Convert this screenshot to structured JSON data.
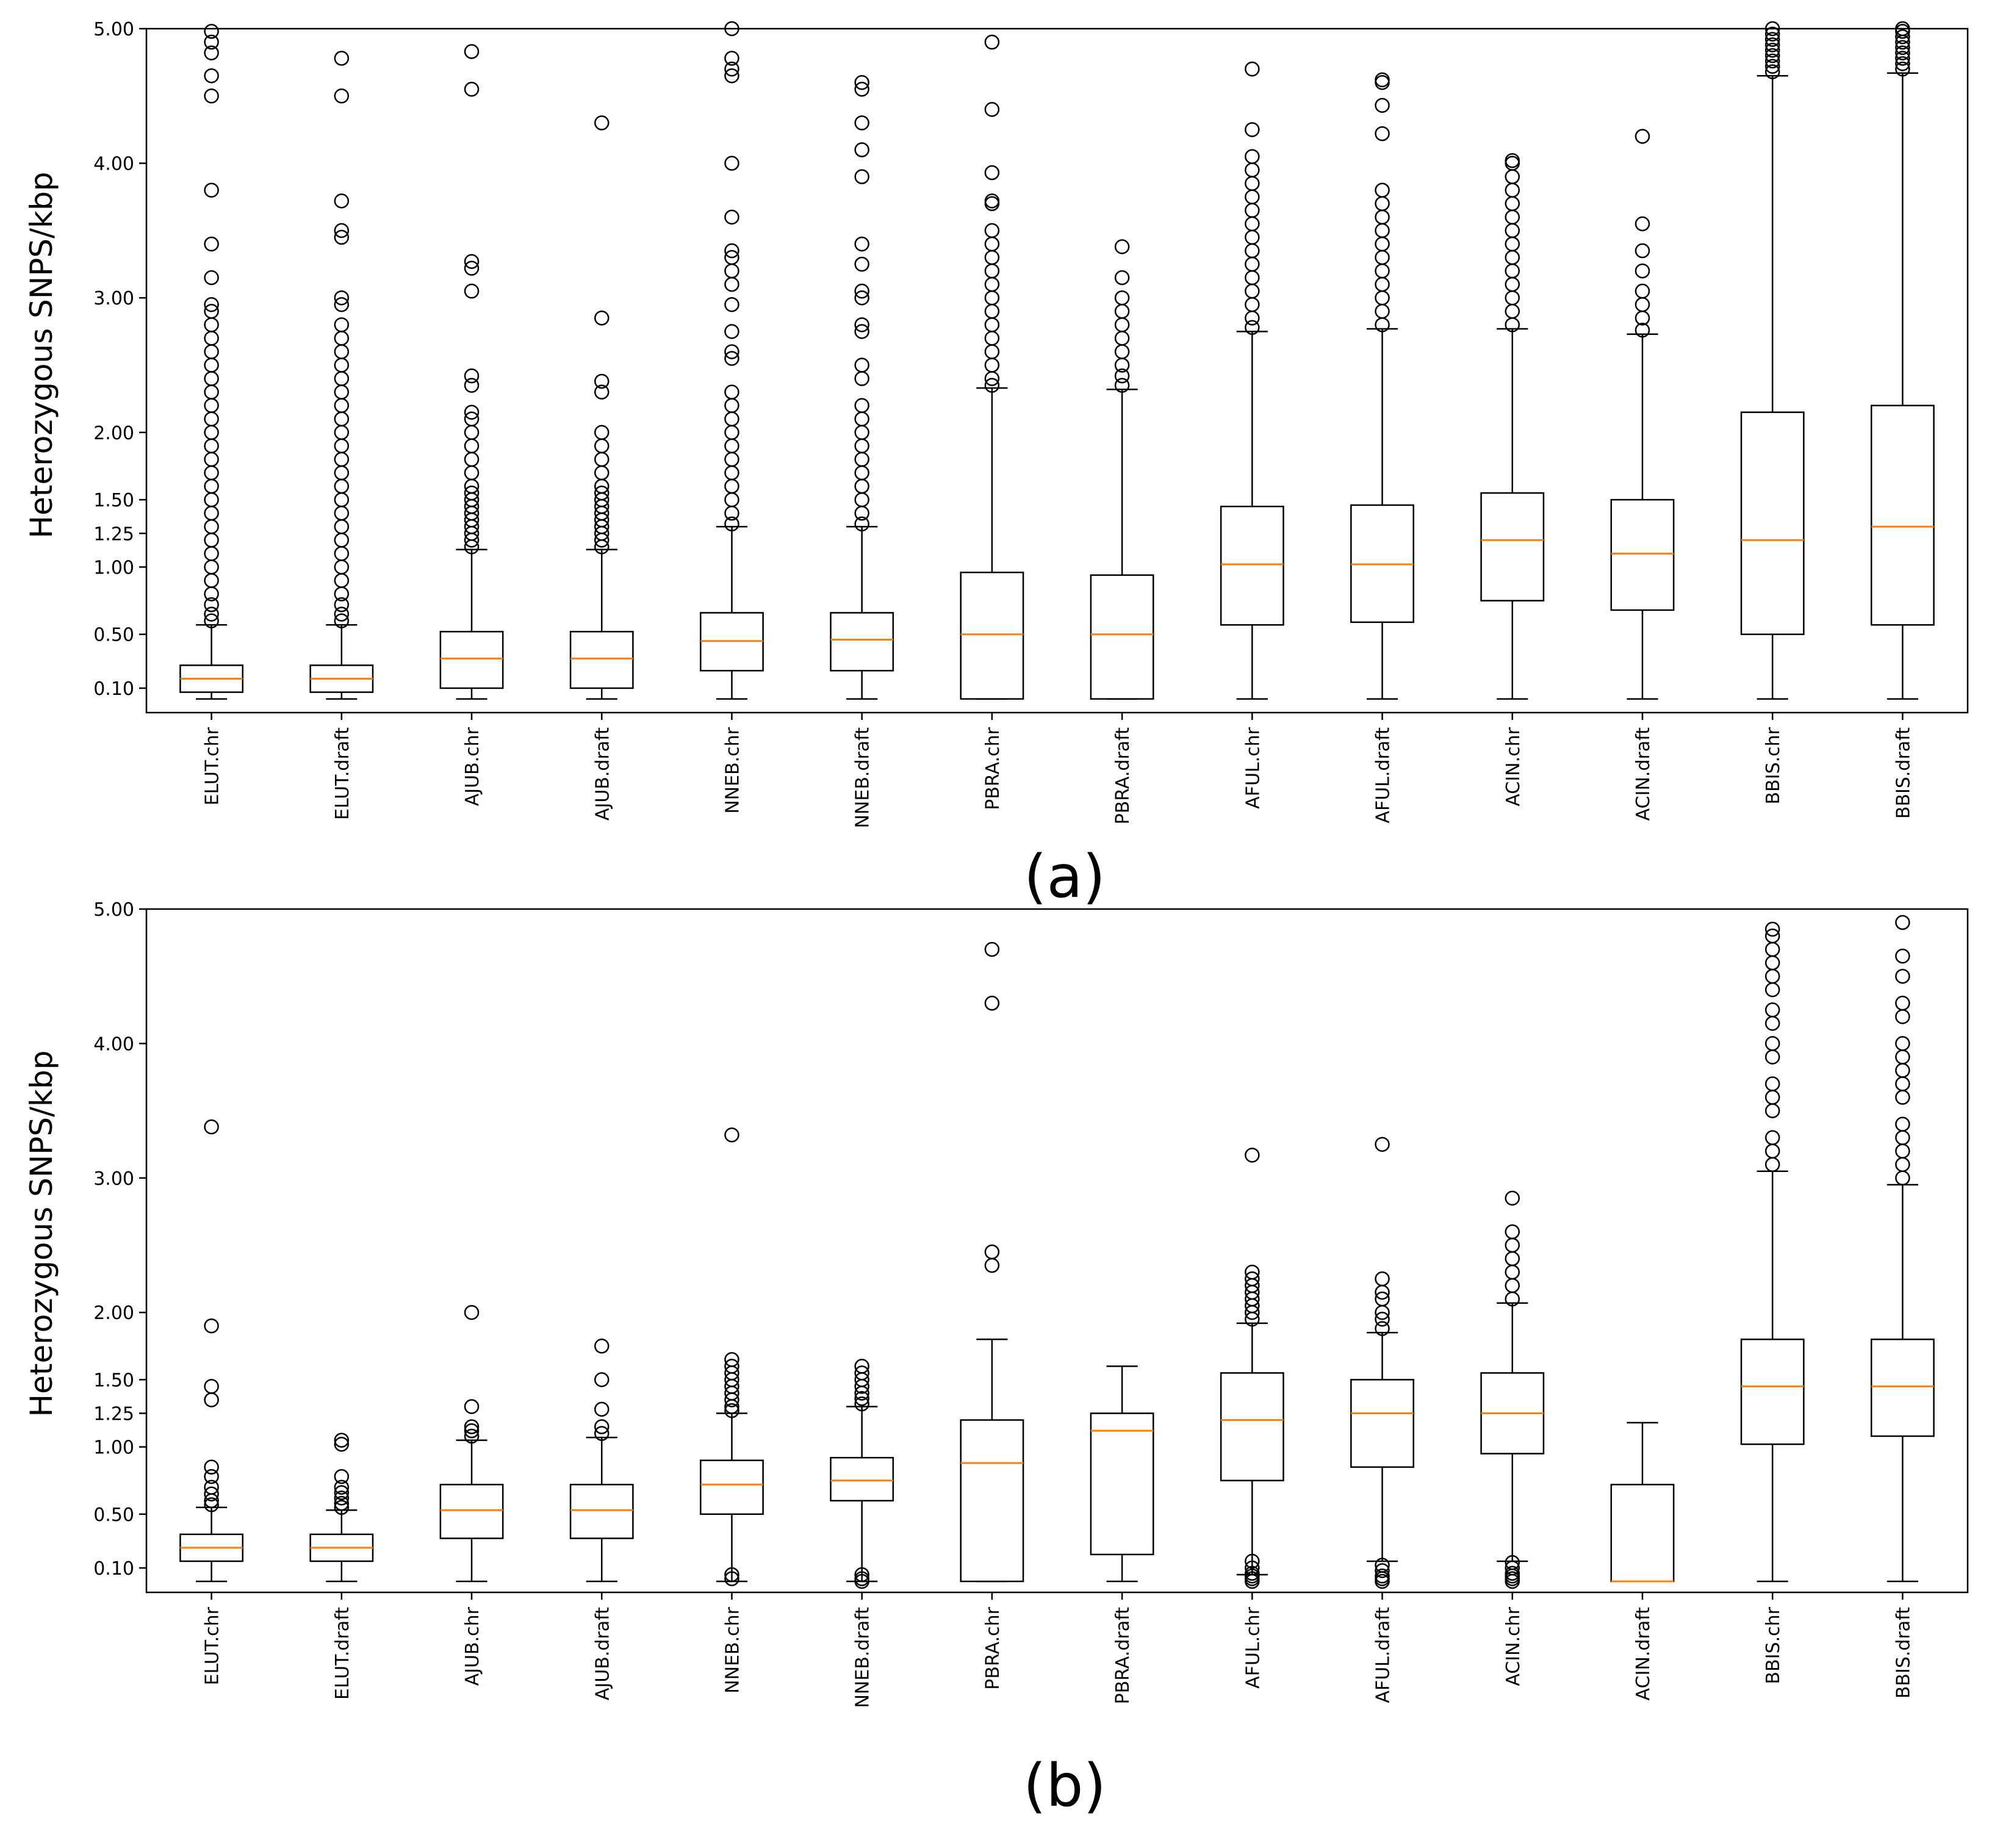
{
  "chart_data": [
    {
      "type": "boxplot",
      "panel_label": "(a)",
      "ylabel": "Heterozygous SNPS/kbp",
      "ylim": [
        0.0,
        5.0
      ],
      "yticks": [
        "0.10",
        "0.50",
        "1.00",
        "1.25",
        "1.50",
        "2.00",
        "3.00",
        "4.00",
        "5.00"
      ],
      "ytick_values": [
        0.1,
        0.5,
        1.0,
        1.25,
        1.5,
        2.0,
        3.0,
        4.0,
        5.0
      ],
      "categories": [
        "ELUT.chr",
        "ELUT.draft",
        "AJUB.chr",
        "AJUB.draft",
        "NNEB.chr",
        "NNEB.draft",
        "PBRA.chr",
        "PBRA.draft",
        "AFUL.chr",
        "AFUL.draft",
        "ACIN.chr",
        "ACIN.draft",
        "BBIS.chr",
        "BBIS.draft"
      ],
      "colors": {
        "box": "#000000",
        "median": "#ff7f0e"
      },
      "boxes": [
        {
          "whislo": 0.02,
          "q1": 0.07,
          "med": 0.17,
          "q3": 0.27,
          "whishi": 0.57,
          "fliers": [
            0.6,
            0.65,
            0.72,
            0.8,
            0.9,
            1.0,
            1.1,
            1.2,
            1.3,
            1.4,
            1.5,
            1.6,
            1.7,
            1.8,
            1.9,
            2.0,
            2.1,
            2.2,
            2.3,
            2.4,
            2.5,
            2.6,
            2.7,
            2.8,
            2.9,
            2.95,
            3.15,
            3.4,
            3.8,
            4.5,
            4.65,
            4.82,
            4.9,
            4.98
          ]
        },
        {
          "whislo": 0.02,
          "q1": 0.07,
          "med": 0.17,
          "q3": 0.27,
          "whishi": 0.57,
          "fliers": [
            0.6,
            0.65,
            0.72,
            0.8,
            0.9,
            1.0,
            1.1,
            1.2,
            1.3,
            1.4,
            1.5,
            1.6,
            1.7,
            1.8,
            1.9,
            2.0,
            2.1,
            2.2,
            2.3,
            2.4,
            2.5,
            2.6,
            2.7,
            2.8,
            2.95,
            3.0,
            3.45,
            3.5,
            3.72,
            4.5,
            4.78
          ]
        },
        {
          "whislo": 0.02,
          "q1": 0.1,
          "med": 0.32,
          "q3": 0.52,
          "whishi": 1.13,
          "fliers": [
            1.15,
            1.2,
            1.25,
            1.3,
            1.35,
            1.4,
            1.45,
            1.5,
            1.55,
            1.6,
            1.7,
            1.8,
            1.9,
            2.0,
            2.1,
            2.15,
            2.35,
            2.42,
            3.05,
            3.22,
            3.27,
            4.55,
            4.83
          ]
        },
        {
          "whislo": 0.02,
          "q1": 0.1,
          "med": 0.32,
          "q3": 0.52,
          "whishi": 1.13,
          "fliers": [
            1.15,
            1.2,
            1.25,
            1.3,
            1.35,
            1.4,
            1.45,
            1.5,
            1.55,
            1.6,
            1.7,
            1.8,
            1.9,
            2.0,
            2.3,
            2.38,
            2.85,
            4.3
          ]
        },
        {
          "whislo": 0.02,
          "q1": 0.23,
          "med": 0.45,
          "q3": 0.66,
          "whishi": 1.3,
          "fliers": [
            1.32,
            1.4,
            1.5,
            1.6,
            1.7,
            1.8,
            1.9,
            2.0,
            2.1,
            2.2,
            2.3,
            2.55,
            2.6,
            2.75,
            2.95,
            3.1,
            3.2,
            3.3,
            3.35,
            3.6,
            4.0,
            4.65,
            4.7,
            4.78,
            5.0
          ]
        },
        {
          "whislo": 0.02,
          "q1": 0.23,
          "med": 0.46,
          "q3": 0.66,
          "whishi": 1.3,
          "fliers": [
            1.32,
            1.4,
            1.5,
            1.6,
            1.7,
            1.8,
            1.9,
            2.0,
            2.1,
            2.2,
            2.4,
            2.5,
            2.75,
            2.8,
            3.0,
            3.05,
            3.25,
            3.4,
            3.9,
            4.1,
            4.3,
            4.55,
            4.6
          ]
        },
        {
          "whislo": 0.02,
          "q1": 0.02,
          "med": 0.5,
          "q3": 0.96,
          "whishi": 2.33,
          "fliers": [
            2.35,
            2.4,
            2.5,
            2.6,
            2.7,
            2.8,
            2.9,
            3.0,
            3.1,
            3.2,
            3.3,
            3.4,
            3.5,
            3.7,
            3.72,
            3.93,
            4.4,
            4.9
          ]
        },
        {
          "whislo": 0.02,
          "q1": 0.02,
          "med": 0.5,
          "q3": 0.94,
          "whishi": 2.32,
          "fliers": [
            2.35,
            2.42,
            2.5,
            2.6,
            2.7,
            2.8,
            2.9,
            3.0,
            3.15,
            3.38
          ]
        },
        {
          "whislo": 0.02,
          "q1": 0.57,
          "med": 1.02,
          "q3": 1.45,
          "whishi": 2.75,
          "fliers": [
            2.78,
            2.85,
            2.95,
            3.05,
            3.15,
            3.25,
            3.35,
            3.45,
            3.55,
            3.65,
            3.75,
            3.85,
            3.95,
            4.05,
            4.25,
            4.7
          ]
        },
        {
          "whislo": 0.02,
          "q1": 0.59,
          "med": 1.02,
          "q3": 1.46,
          "whishi": 2.77,
          "fliers": [
            2.8,
            2.9,
            3.0,
            3.1,
            3.2,
            3.3,
            3.4,
            3.5,
            3.6,
            3.7,
            3.8,
            4.22,
            4.43,
            4.6,
            4.62
          ]
        },
        {
          "whislo": 0.02,
          "q1": 0.75,
          "med": 1.2,
          "q3": 1.55,
          "whishi": 2.77,
          "fliers": [
            2.8,
            2.9,
            3.0,
            3.1,
            3.2,
            3.3,
            3.4,
            3.5,
            3.6,
            3.7,
            3.8,
            3.9,
            4.0,
            4.02
          ]
        },
        {
          "whislo": 0.02,
          "q1": 0.68,
          "med": 1.1,
          "q3": 1.5,
          "whishi": 2.73,
          "fliers": [
            2.76,
            2.85,
            2.95,
            3.05,
            3.2,
            3.35,
            3.55,
            4.2
          ]
        },
        {
          "whislo": 0.02,
          "q1": 0.5,
          "med": 1.2,
          "q3": 2.15,
          "whishi": 4.65,
          "fliers": [
            4.68,
            4.72,
            4.76,
            4.8,
            4.84,
            4.88,
            4.92,
            4.96,
            5.0
          ]
        },
        {
          "whislo": 0.02,
          "q1": 0.57,
          "med": 1.3,
          "q3": 2.2,
          "whishi": 4.67,
          "fliers": [
            4.7,
            4.74,
            4.78,
            4.82,
            4.86,
            4.9,
            4.94,
            4.98,
            5.0
          ]
        }
      ]
    },
    {
      "type": "boxplot",
      "panel_label": "(b)",
      "ylabel": "Heterozygous SNPS/kbp",
      "ylim": [
        0.0,
        5.0
      ],
      "yticks": [
        "0.10",
        "0.50",
        "1.00",
        "1.25",
        "1.50",
        "2.00",
        "3.00",
        "4.00",
        "5.00"
      ],
      "ytick_values": [
        0.1,
        0.5,
        1.0,
        1.25,
        1.5,
        2.0,
        3.0,
        4.0,
        5.0
      ],
      "categories": [
        "ELUT.chr",
        "ELUT.draft",
        "AJUB.chr",
        "AJUB.draft",
        "NNEB.chr",
        "NNEB.draft",
        "PBRA.chr",
        "PBRA.draft",
        "AFUL.chr",
        "AFUL.draft",
        "ACIN.chr",
        "ACIN.draft",
        "BBIS.chr",
        "BBIS.draft"
      ],
      "colors": {
        "box": "#000000",
        "median": "#ff7f0e"
      },
      "boxes": [
        {
          "whislo": 0.0,
          "q1": 0.15,
          "med": 0.25,
          "q3": 0.35,
          "whishi": 0.55,
          "fliers": [
            0.57,
            0.6,
            0.65,
            0.7,
            0.78,
            0.85,
            1.35,
            1.45,
            1.9,
            3.38
          ]
        },
        {
          "whislo": 0.0,
          "q1": 0.15,
          "med": 0.25,
          "q3": 0.35,
          "whishi": 0.53,
          "fliers": [
            0.55,
            0.58,
            0.62,
            0.66,
            0.7,
            0.78,
            1.02,
            1.05
          ]
        },
        {
          "whislo": 0.0,
          "q1": 0.32,
          "med": 0.53,
          "q3": 0.72,
          "whishi": 1.05,
          "fliers": [
            1.08,
            1.12,
            1.15,
            1.3,
            2.0
          ]
        },
        {
          "whislo": 0.0,
          "q1": 0.32,
          "med": 0.53,
          "q3": 0.72,
          "whishi": 1.07,
          "fliers": [
            1.1,
            1.15,
            1.28,
            1.5,
            1.75
          ]
        },
        {
          "whislo": 0.0,
          "q1": 0.5,
          "med": 0.72,
          "q3": 0.9,
          "whishi": 1.25,
          "fliers": [
            0.02,
            0.05,
            1.27,
            1.3,
            1.35,
            1.4,
            1.45,
            1.5,
            1.55,
            1.6,
            1.65,
            3.32
          ]
        },
        {
          "whislo": 0.0,
          "q1": 0.6,
          "med": 0.75,
          "q3": 0.92,
          "whishi": 1.3,
          "fliers": [
            0.0,
            0.02,
            0.05,
            1.32,
            1.36,
            1.4,
            1.45,
            1.5,
            1.55,
            1.6
          ]
        },
        {
          "whislo": 0.0,
          "q1": 0.0,
          "med": 0.88,
          "q3": 1.2,
          "whishi": 1.8,
          "fliers": [
            2.35,
            2.45,
            4.3,
            4.7
          ]
        },
        {
          "whislo": 0.0,
          "q1": 0.2,
          "med": 1.12,
          "q3": 1.25,
          "whishi": 1.6
        },
        {
          "whislo": 0.05,
          "q1": 0.75,
          "med": 1.2,
          "q3": 1.55,
          "whishi": 1.92,
          "fliers": [
            0.0,
            0.02,
            0.04,
            0.06,
            0.1,
            0.15,
            1.95,
            2.0,
            2.05,
            2.1,
            2.15,
            2.2,
            2.25,
            2.3,
            3.17
          ]
        },
        {
          "whislo": 0.15,
          "q1": 0.85,
          "med": 1.25,
          "q3": 1.5,
          "whishi": 1.85,
          "fliers": [
            0.0,
            0.02,
            0.04,
            0.08,
            0.12,
            1.88,
            1.95,
            2.0,
            2.1,
            2.15,
            2.25,
            3.25
          ]
        },
        {
          "whislo": 0.15,
          "q1": 0.95,
          "med": 1.25,
          "q3": 1.55,
          "whishi": 2.07,
          "fliers": [
            0.0,
            0.02,
            0.04,
            0.06,
            0.1,
            0.14,
            2.1,
            2.2,
            2.3,
            2.4,
            2.5,
            2.6,
            2.85
          ]
        },
        {
          "whislo": 0.0,
          "q1": 0.0,
          "med": 0.0,
          "q3": 0.72,
          "whishi": 1.18
        },
        {
          "whislo": 0.0,
          "q1": 1.02,
          "med": 1.45,
          "q3": 1.8,
          "whishi": 3.05,
          "fliers": [
            3.1,
            3.2,
            3.3,
            3.5,
            3.6,
            3.7,
            3.9,
            4.0,
            4.15,
            4.25,
            4.4,
            4.5,
            4.6,
            4.7,
            4.8,
            4.85
          ]
        },
        {
          "whislo": 0.0,
          "q1": 1.08,
          "med": 1.45,
          "q3": 1.8,
          "whishi": 2.95,
          "fliers": [
            3.0,
            3.1,
            3.2,
            3.3,
            3.4,
            3.6,
            3.7,
            3.8,
            3.9,
            4.0,
            4.2,
            4.3,
            4.5,
            4.65,
            4.9
          ]
        }
      ]
    }
  ]
}
